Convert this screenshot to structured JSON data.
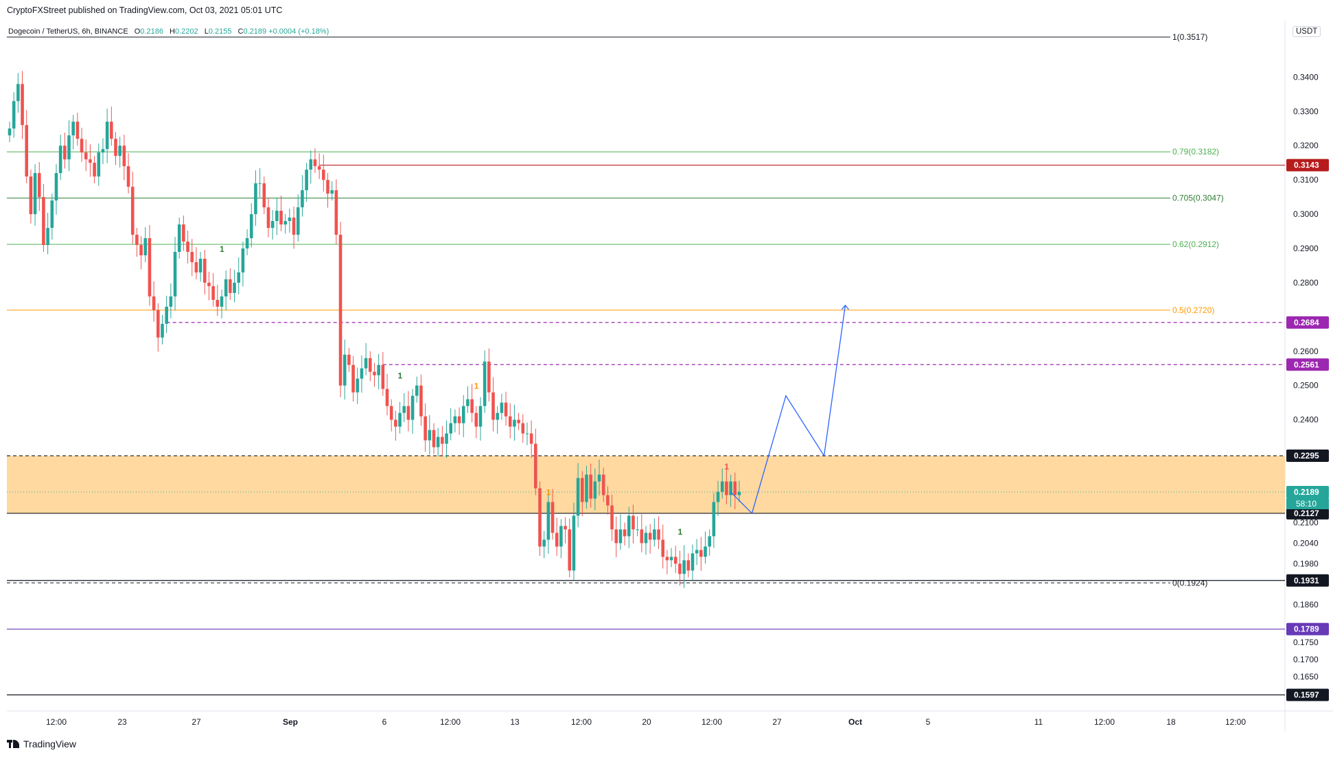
{
  "header": {
    "publisher": "CryptoFXStreet published on TradingView.com, Oct 03, 2021 05:01 UTC",
    "symbol": "Dogecoin / TetherUS, 6h, BINANCE",
    "o_label": "O",
    "o_value": "0.2186",
    "h_label": "H",
    "h_value": "0.2202",
    "l_label": "L",
    "l_value": "0.2155",
    "c_label": "C",
    "c_value": "0.2189",
    "change": "+0.0004 (+0.18%)"
  },
  "currency": "USDT",
  "footer": {
    "brand": "TradingView"
  },
  "colors": {
    "up": "#26a69a",
    "down": "#ef5350",
    "fib_green": "#4caf50",
    "fib_orange": "#ff9800",
    "resistance_red": "#b71c1c",
    "purple": "#9c27b0",
    "violet": "#673ab7",
    "zone": "#ffcc80",
    "projection": "#2962ff"
  },
  "chart_data": {
    "type": "candlestick",
    "x_axis_labels": [
      "12:00",
      "23",
      "27",
      "Sep",
      "6",
      "12:00",
      "13",
      "12:00",
      "20",
      "12:00",
      "27",
      "Oct",
      "5",
      "11",
      "12:00",
      "18",
      "12:00"
    ],
    "y_axis_labels": [
      "0.3400",
      "0.3300",
      "0.3200",
      "0.3100",
      "0.3000",
      "0.2900",
      "0.2800",
      "0.2600",
      "0.2500",
      "0.2400",
      "0.2100",
      "0.2040",
      "0.1980",
      "0.1860",
      "0.1750",
      "0.1700",
      "0.1650"
    ],
    "ylim": [
      0.155,
      0.3565
    ],
    "fib_levels": [
      {
        "label": "1(0.3517)",
        "value": 0.3517,
        "color": "#131722"
      },
      {
        "label": "0.79(0.3182)",
        "value": 0.3182,
        "color": "#4caf50"
      },
      {
        "label": "0.705(0.3047)",
        "value": 0.3047,
        "color": "#2e7d32"
      },
      {
        "label": "0.62(0.2912)",
        "value": 0.2912,
        "color": "#4caf50"
      },
      {
        "label": "0.5(0.2720)",
        "value": 0.272,
        "color": "#ff9800"
      },
      {
        "label": "0(0.1924)",
        "value": 0.1924,
        "color": "#131722"
      }
    ],
    "price_tags": [
      {
        "label": "0.3143",
        "value": 0.3143,
        "bg": "#b71c1c",
        "fg": "#ffffff"
      },
      {
        "label": "0.2684",
        "value": 0.2684,
        "bg": "#9c27b0",
        "fg": "#ffffff"
      },
      {
        "label": "0.2561",
        "value": 0.2561,
        "bg": "#9c27b0",
        "fg": "#ffffff"
      },
      {
        "label": "0.2295",
        "value": 0.2295,
        "bg": "#131722",
        "fg": "#ffffff"
      },
      {
        "label": "0.2189",
        "value": 0.2189,
        "bg": "#26a69a",
        "fg": "#ffffff"
      },
      {
        "label": "0.2127",
        "value": 0.2127,
        "bg": "#131722",
        "fg": "#ffffff"
      },
      {
        "label": "0.1931",
        "value": 0.1931,
        "bg": "#131722",
        "fg": "#ffffff"
      },
      {
        "label": "0.1789",
        "value": 0.1789,
        "bg": "#673ab7",
        "fg": "#ffffff"
      },
      {
        "label": "0.1597",
        "value": 0.1597,
        "bg": "#131722",
        "fg": "#ffffff"
      }
    ],
    "countdown": "58:10",
    "horizontal_lines": [
      {
        "value": 0.3143,
        "color": "#b71c1c",
        "style": "solid",
        "start_index": 73
      },
      {
        "value": 0.2684,
        "color": "#9c27b0",
        "style": "dashed",
        "start_index": 37
      },
      {
        "value": 0.2561,
        "color": "#9c27b0",
        "style": "dashed",
        "start_index": 88
      },
      {
        "value": 0.2295,
        "color": "#131722",
        "style": "dashed",
        "start_index": 0
      },
      {
        "value": 0.2127,
        "color": "#131722",
        "style": "solid",
        "start_index": 0
      },
      {
        "value": 0.1931,
        "color": "#131722",
        "style": "solid",
        "start_index": 0
      },
      {
        "value": 0.1789,
        "color": "#673ab7",
        "style": "solid",
        "start_index": 0
      },
      {
        "value": 0.1597,
        "color": "#131722",
        "style": "solid",
        "start_index": 0
      }
    ],
    "zone": {
      "low": 0.2127,
      "high": 0.2295
    },
    "last_price": 0.2189,
    "projection_path": [
      {
        "index": 170,
        "price": 0.2189
      },
      {
        "index": 175,
        "price": 0.2127
      },
      {
        "index": 183,
        "price": 0.247
      },
      {
        "index": 192,
        "price": 0.2295
      },
      {
        "index": 197,
        "price": 0.2734
      }
    ],
    "markers": [
      {
        "index": 50,
        "price": 0.289,
        "text": "1",
        "color": "#2e7d32"
      },
      {
        "index": 92,
        "price": 0.252,
        "text": "1",
        "color": "#2e7d32"
      },
      {
        "index": 110,
        "price": 0.249,
        "text": "1",
        "color": "#ff9800"
      },
      {
        "index": 127,
        "price": 0.218,
        "text": "1",
        "color": "#ff9800"
      },
      {
        "index": 158,
        "price": 0.2065,
        "text": "1",
        "color": "#2e7d32"
      },
      {
        "index": 169,
        "price": 0.2255,
        "text": "1",
        "color": "#ef5350"
      }
    ],
    "candles_close": [
      0.325,
      0.333,
      0.338,
      0.326,
      0.311,
      0.3,
      0.312,
      0.305,
      0.291,
      0.296,
      0.304,
      0.312,
      0.32,
      0.316,
      0.323,
      0.327,
      0.322,
      0.318,
      0.316,
      0.315,
      0.311,
      0.318,
      0.319,
      0.327,
      0.322,
      0.317,
      0.32,
      0.314,
      0.308,
      0.294,
      0.291,
      0.288,
      0.293,
      0.276,
      0.272,
      0.264,
      0.268,
      0.273,
      0.276,
      0.289,
      0.297,
      0.292,
      0.289,
      0.286,
      0.283,
      0.287,
      0.28,
      0.279,
      0.275,
      0.273,
      0.276,
      0.281,
      0.277,
      0.28,
      0.283,
      0.29,
      0.293,
      0.3,
      0.309,
      0.309,
      0.302,
      0.296,
      0.298,
      0.301,
      0.297,
      0.298,
      0.299,
      0.294,
      0.302,
      0.307,
      0.313,
      0.316,
      0.314,
      0.313,
      0.31,
      0.306,
      0.307,
      0.294,
      0.25,
      0.259,
      0.256,
      0.248,
      0.252,
      0.255,
      0.258,
      0.254,
      0.253,
      0.256,
      0.249,
      0.244,
      0.24,
      0.238,
      0.242,
      0.244,
      0.24,
      0.247,
      0.25,
      0.241,
      0.234,
      0.237,
      0.232,
      0.235,
      0.233,
      0.236,
      0.239,
      0.241,
      0.239,
      0.244,
      0.246,
      0.242,
      0.238,
      0.244,
      0.257,
      0.248,
      0.24,
      0.242,
      0.245,
      0.241,
      0.238,
      0.24,
      0.239,
      0.236,
      0.236,
      0.233,
      0.22,
      0.203,
      0.205,
      0.216,
      0.207,
      0.203,
      0.209,
      0.208,
      0.196,
      0.212,
      0.223,
      0.216,
      0.224,
      0.217,
      0.222,
      0.224,
      0.218,
      0.215,
      0.208,
      0.204,
      0.208,
      0.206,
      0.212,
      0.208,
      0.208,
      0.204,
      0.207,
      0.205,
      0.208,
      0.205,
      0.2,
      0.199,
      0.2,
      0.198,
      0.195,
      0.199,
      0.196,
      0.201,
      0.202,
      0.2,
      0.203,
      0.206,
      0.216,
      0.219,
      0.222,
      0.218,
      0.222,
      0.218,
      0.219
    ]
  }
}
